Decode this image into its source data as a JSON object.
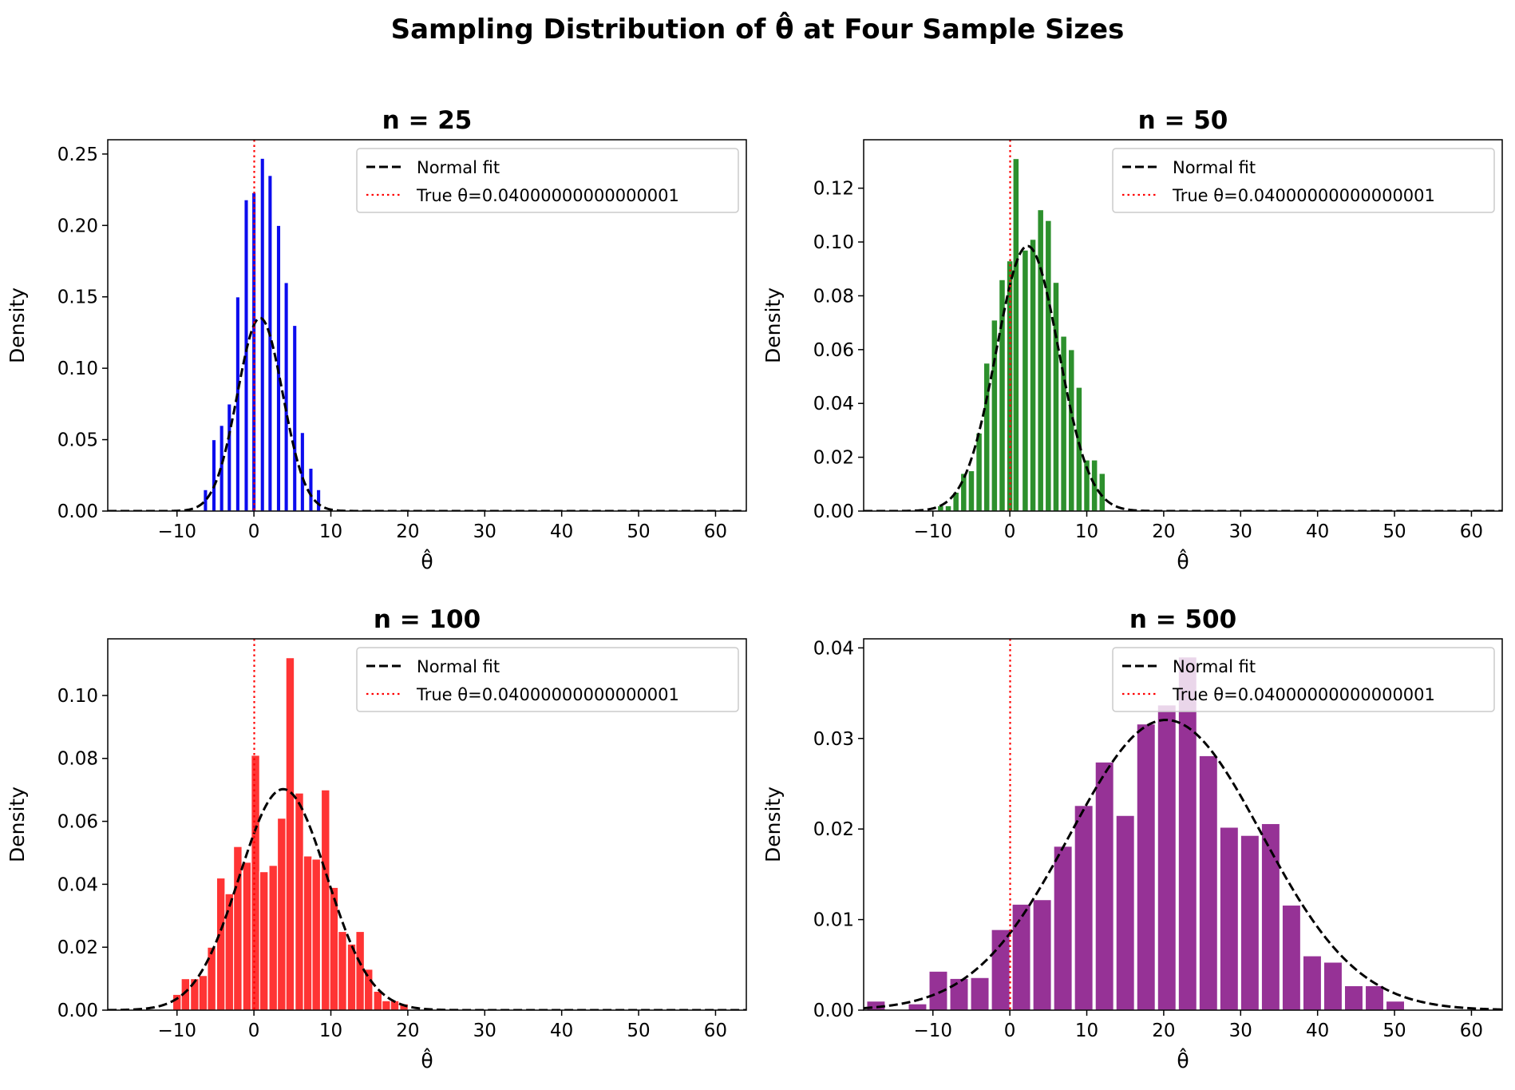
{
  "figure_title": "Sampling Distribution of θ̂ at Four Sample Sizes",
  "chart_data": [
    {
      "type": "bar",
      "title": "n = 25",
      "xlabel": "θ̂",
      "ylabel": "Density",
      "xlim": [
        -19,
        64
      ],
      "ylim": [
        0,
        0.26
      ],
      "xticks": [
        -10,
        0,
        10,
        20,
        30,
        40,
        50,
        60
      ],
      "xtick_labels": [
        "−10",
        "0",
        "10",
        "20",
        "30",
        "40",
        "50",
        "60"
      ],
      "yticks": [
        0,
        0.05,
        0.1,
        0.15,
        0.2,
        0.25
      ],
      "ytick_labels": [
        "0.00",
        "0.05",
        "0.10",
        "0.15",
        "0.20",
        "0.25"
      ],
      "bar_color": "#0000ee",
      "bin_width": 0.55,
      "bars": [
        [
          -6.3,
          0.015
        ],
        [
          -5.2,
          0.05
        ],
        [
          -4.2,
          0.06
        ],
        [
          -3.2,
          0.075
        ],
        [
          -2.1,
          0.15
        ],
        [
          -1.0,
          0.218
        ],
        [
          0.0,
          0.223
        ],
        [
          1.1,
          0.247
        ],
        [
          2.1,
          0.235
        ],
        [
          3.2,
          0.2
        ],
        [
          4.2,
          0.16
        ],
        [
          5.3,
          0.13
        ],
        [
          6.3,
          0.055
        ],
        [
          7.4,
          0.03
        ],
        [
          8.4,
          0.015
        ]
      ],
      "normal_fit": {
        "mean": 0.8,
        "sd": 2.95
      },
      "true_theta": 0.04,
      "legend": {
        "position": "upper right",
        "fit_label": "Normal fit",
        "true_label": "True θ=0.04000000000000001"
      }
    },
    {
      "type": "bar",
      "title": "n = 50",
      "xlabel": "θ̂",
      "ylabel": "Density",
      "xlim": [
        -19,
        64
      ],
      "ylim": [
        0,
        0.138
      ],
      "xticks": [
        -10,
        0,
        10,
        20,
        30,
        40,
        50,
        60
      ],
      "xtick_labels": [
        "−10",
        "0",
        "10",
        "20",
        "30",
        "40",
        "50",
        "60"
      ],
      "yticks": [
        0,
        0.02,
        0.04,
        0.06,
        0.08,
        0.1,
        0.12
      ],
      "ytick_labels": [
        "0.00",
        "0.02",
        "0.04",
        "0.06",
        "0.08",
        "0.10",
        "0.12"
      ],
      "bar_color": "#228b22",
      "bin_width": 0.8,
      "bars": [
        [
          -9.0,
          0.002
        ],
        [
          -8.0,
          0.002
        ],
        [
          -7.0,
          0.007
        ],
        [
          -6.0,
          0.014
        ],
        [
          -5.0,
          0.015
        ],
        [
          -4.0,
          0.029
        ],
        [
          -3.0,
          0.055
        ],
        [
          -2.0,
          0.071
        ],
        [
          -1.0,
          0.086
        ],
        [
          0.0,
          0.093
        ],
        [
          0.8,
          0.131
        ],
        [
          2.0,
          0.097
        ],
        [
          3.0,
          0.101
        ],
        [
          4.0,
          0.112
        ],
        [
          5.0,
          0.108
        ],
        [
          6.0,
          0.085
        ],
        [
          7.0,
          0.065
        ],
        [
          8.0,
          0.06
        ],
        [
          9.0,
          0.046
        ],
        [
          10.0,
          0.019
        ],
        [
          11.0,
          0.019
        ],
        [
          12.0,
          0.014
        ]
      ],
      "normal_fit": {
        "mean": 2.3,
        "sd": 4.05
      },
      "true_theta": 0.04,
      "legend": {
        "position": "upper right",
        "fit_label": "Normal fit",
        "true_label": "True θ=0.04000000000000001"
      }
    },
    {
      "type": "bar",
      "title": "n = 100",
      "xlabel": "θ̂",
      "ylabel": "Density",
      "xlim": [
        -19,
        64
      ],
      "ylim": [
        0,
        0.118
      ],
      "xticks": [
        -10,
        0,
        10,
        20,
        30,
        40,
        50,
        60
      ],
      "xtick_labels": [
        "−10",
        "0",
        "10",
        "20",
        "30",
        "40",
        "50",
        "60"
      ],
      "yticks": [
        0,
        0.02,
        0.04,
        0.06,
        0.08,
        0.1
      ],
      "ytick_labels": [
        "0.00",
        "0.02",
        "0.04",
        "0.06",
        "0.08",
        "0.10"
      ],
      "bar_color": "#ff2a2a",
      "bin_width": 1.1,
      "bars": [
        [
          -10.0,
          0.005
        ],
        [
          -8.9,
          0.01
        ],
        [
          -7.7,
          0.01
        ],
        [
          -6.6,
          0.011
        ],
        [
          -5.5,
          0.02
        ],
        [
          -4.3,
          0.042
        ],
        [
          -3.2,
          0.037
        ],
        [
          -2.1,
          0.052
        ],
        [
          -0.9,
          0.047
        ],
        [
          0.2,
          0.081
        ],
        [
          1.3,
          0.044
        ],
        [
          2.5,
          0.046
        ],
        [
          3.6,
          0.061
        ],
        [
          4.7,
          0.112
        ],
        [
          5.9,
          0.069
        ],
        [
          7.0,
          0.049
        ],
        [
          8.1,
          0.048
        ],
        [
          9.3,
          0.07
        ],
        [
          10.4,
          0.039
        ],
        [
          11.5,
          0.025
        ],
        [
          12.7,
          0.021
        ],
        [
          13.8,
          0.025
        ],
        [
          14.9,
          0.013
        ],
        [
          16.1,
          0.006
        ],
        [
          17.2,
          0.003
        ],
        [
          18.3,
          0.003
        ],
        [
          19.5,
          0.002
        ]
      ],
      "normal_fit": {
        "mean": 3.8,
        "sd": 5.68
      },
      "true_theta": 0.04,
      "legend": {
        "position": "upper right",
        "fit_label": "Normal fit",
        "true_label": "True θ=0.04000000000000001"
      }
    },
    {
      "type": "bar",
      "title": "n = 500",
      "xlabel": "θ̂",
      "ylabel": "Density",
      "xlim": [
        -19,
        64
      ],
      "ylim": [
        0,
        0.041
      ],
      "xticks": [
        -10,
        0,
        10,
        20,
        30,
        40,
        50,
        60
      ],
      "xtick_labels": [
        "−10",
        "0",
        "10",
        "20",
        "30",
        "40",
        "50",
        "60"
      ],
      "yticks": [
        0,
        0.01,
        0.02,
        0.03,
        0.04
      ],
      "ytick_labels": [
        "0.00",
        "0.01",
        "0.02",
        "0.03",
        "0.04"
      ],
      "bar_color": "#912891",
      "bin_width": 2.4,
      "bars": [
        [
          -17.4,
          0.001
        ],
        [
          -14.7,
          0.0
        ],
        [
          -12.0,
          0.0007
        ],
        [
          -9.3,
          0.0043
        ],
        [
          -6.6,
          0.0035
        ],
        [
          -3.9,
          0.0036
        ],
        [
          -1.2,
          0.0089
        ],
        [
          1.5,
          0.0117
        ],
        [
          4.2,
          0.0122
        ],
        [
          6.9,
          0.0181
        ],
        [
          9.6,
          0.0226
        ],
        [
          12.3,
          0.0274
        ],
        [
          15.0,
          0.0215
        ],
        [
          17.7,
          0.0316
        ],
        [
          20.4,
          0.0337
        ],
        [
          23.1,
          0.039
        ],
        [
          25.8,
          0.0281
        ],
        [
          28.5,
          0.0202
        ],
        [
          31.2,
          0.0193
        ],
        [
          33.9,
          0.0206
        ],
        [
          36.6,
          0.0116
        ],
        [
          39.3,
          0.006
        ],
        [
          42.0,
          0.0053
        ],
        [
          44.7,
          0.0027
        ],
        [
          47.4,
          0.0027
        ],
        [
          50.1,
          0.001
        ]
      ],
      "normal_fit": {
        "mean": 20.3,
        "sd": 12.45
      },
      "true_theta": 0.04,
      "legend": {
        "position": "upper right",
        "fit_label": "Normal fit",
        "true_label": "True θ=0.04000000000000001"
      }
    }
  ]
}
